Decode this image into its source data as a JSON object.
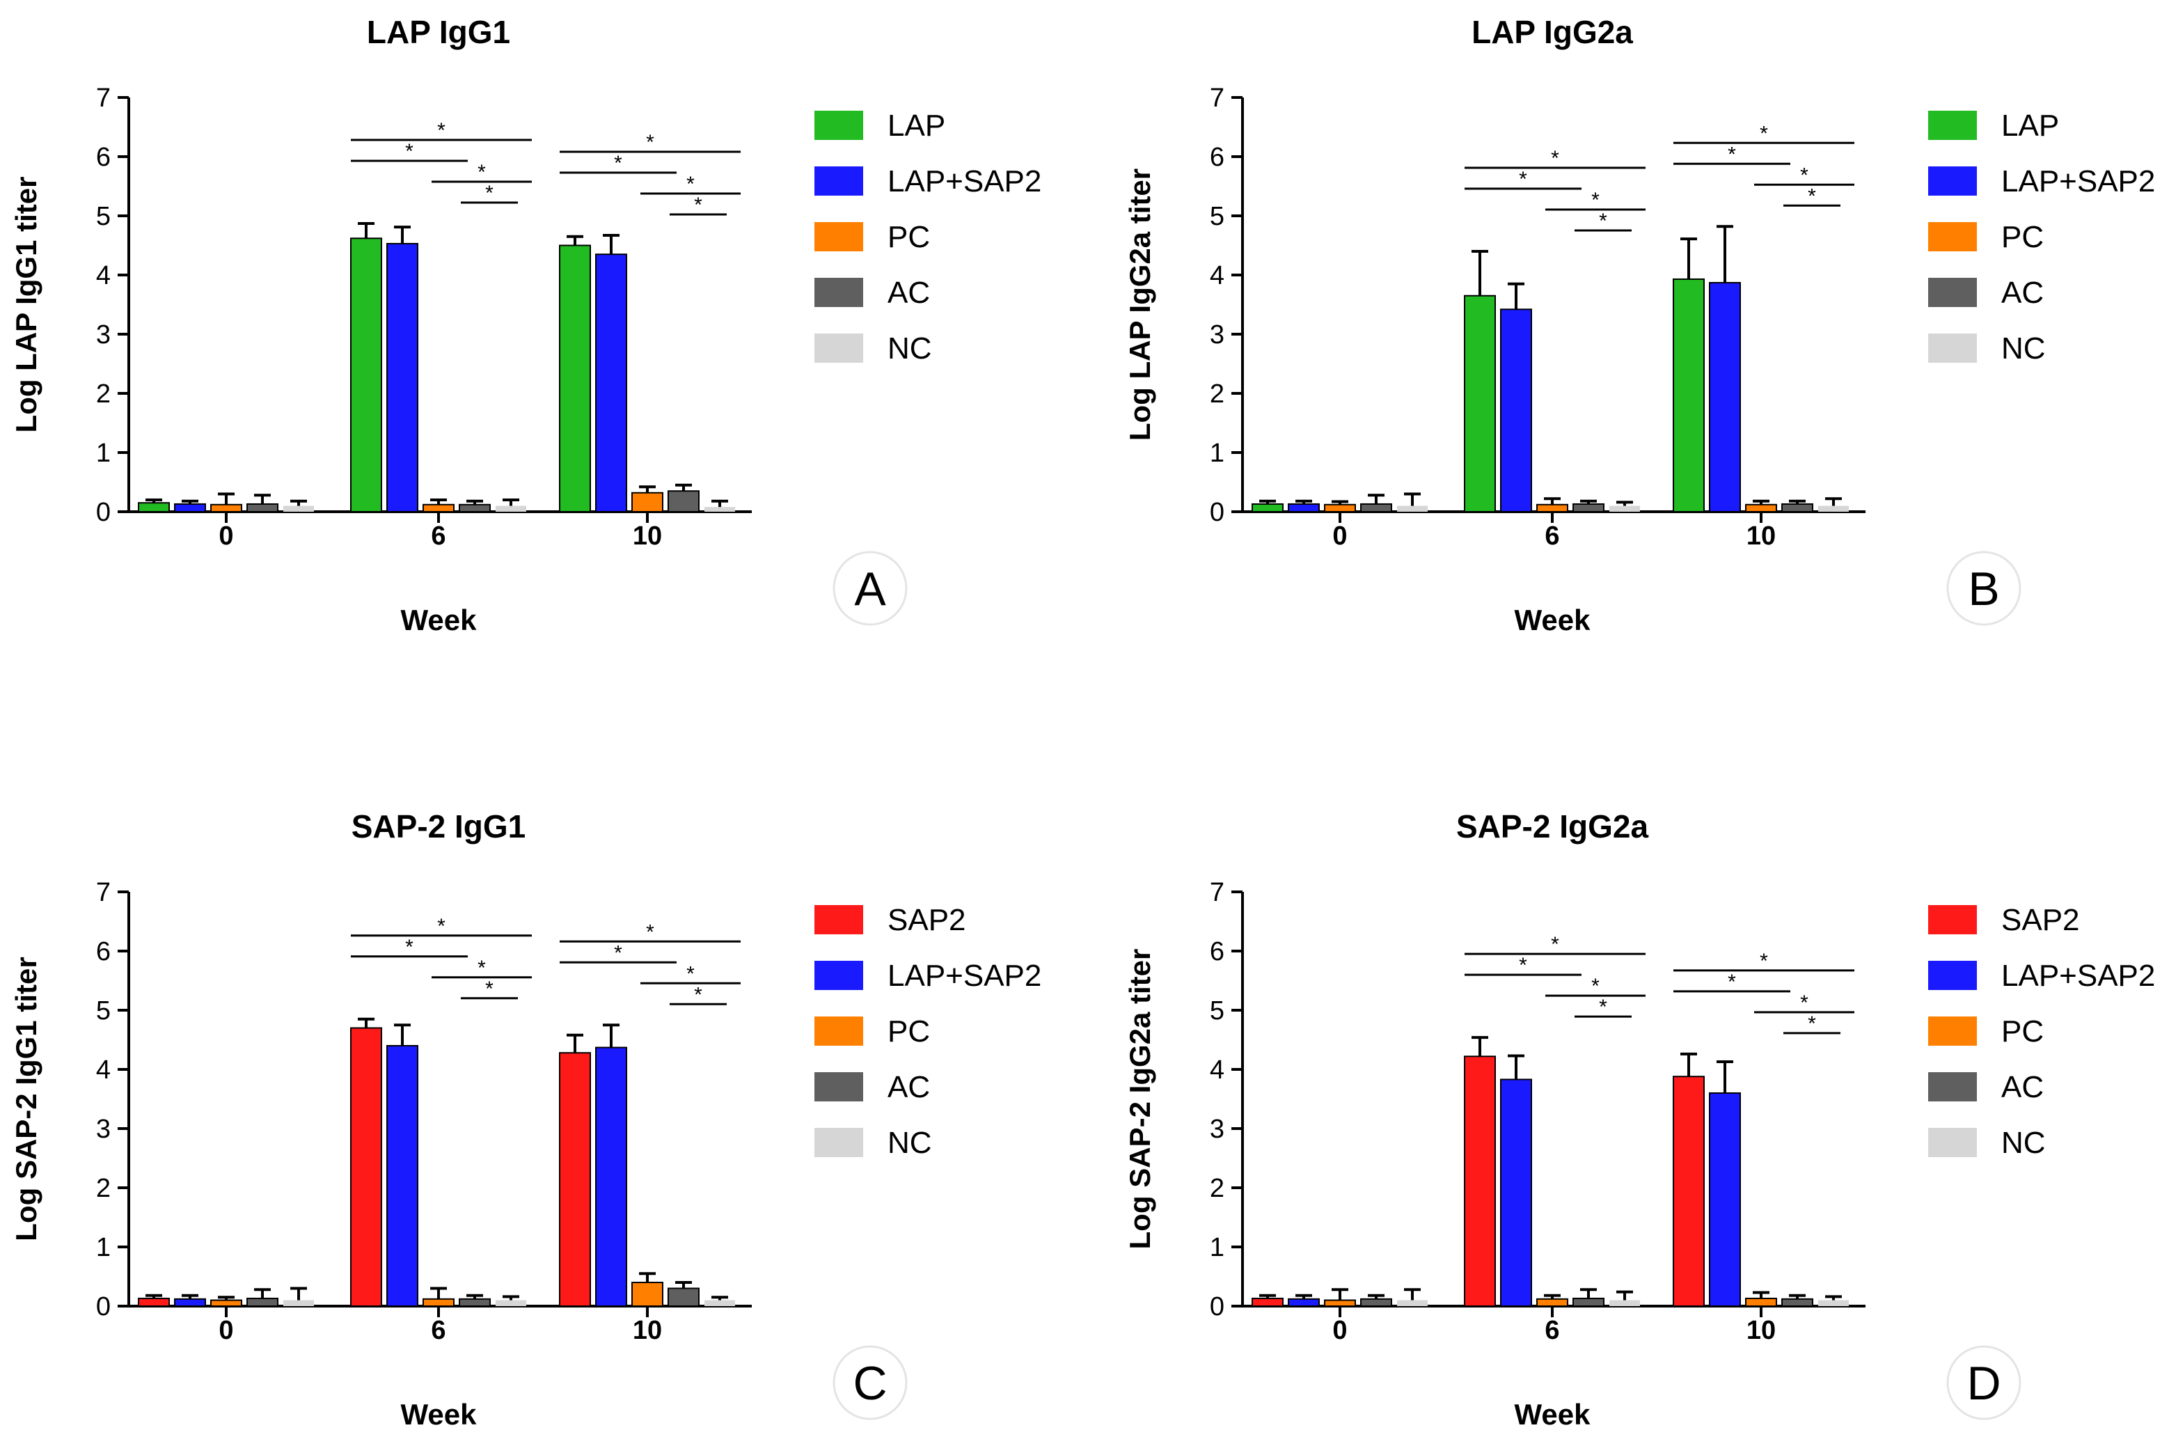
{
  "figure": {
    "panels": [
      {
        "letter": "A",
        "chart_data": {
          "type": "bar",
          "title": "LAP IgG1",
          "xlabel": "Week",
          "ylabel": "Log LAP IgG1 titer",
          "categories": [
            "0",
            "6",
            "10"
          ],
          "ylim": [
            0,
            7
          ],
          "yticks": [
            "0",
            "1",
            "2",
            "3",
            "4",
            "5",
            "6",
            "7"
          ],
          "legend_position": "right",
          "series": [
            {
              "name": "LAP",
              "color": "#22bb22",
              "values": [
                0.15,
                4.62,
                4.5
              ],
              "errors": [
                0.05,
                0.25,
                0.15
              ]
            },
            {
              "name": "LAP+SAP2",
              "color": "#1a1aff",
              "values": [
                0.13,
                4.53,
                4.35
              ],
              "errors": [
                0.05,
                0.28,
                0.32
              ]
            },
            {
              "name": "PC",
              "color": "#ff8000",
              "values": [
                0.12,
                0.12,
                0.32
              ],
              "errors": [
                0.18,
                0.08,
                0.1
              ]
            },
            {
              "name": "AC",
              "color": "#5f5f5f",
              "values": [
                0.13,
                0.12,
                0.35
              ],
              "errors": [
                0.15,
                0.06,
                0.1
              ]
            },
            {
              "name": "NC",
              "color": "#d6d6d6",
              "values": [
                0.1,
                0.1,
                0.08
              ],
              "errors": [
                0.08,
                0.1,
                0.1
              ]
            }
          ],
          "significance": [
            {
              "category": "6",
              "marks": [
                "*",
                "*",
                "*",
                "*"
              ]
            },
            {
              "category": "10",
              "marks": [
                "*",
                "*",
                "*",
                "*"
              ]
            }
          ]
        }
      },
      {
        "letter": "B",
        "chart_data": {
          "type": "bar",
          "title": "LAP IgG2a",
          "xlabel": "Week",
          "ylabel": "Log LAP IgG2a titer",
          "categories": [
            "0",
            "6",
            "10"
          ],
          "ylim": [
            0,
            7
          ],
          "yticks": [
            "0",
            "1",
            "2",
            "3",
            "4",
            "5",
            "6",
            "7"
          ],
          "legend_position": "right",
          "series": [
            {
              "name": "LAP",
              "color": "#22bb22",
              "values": [
                0.13,
                3.65,
                3.93
              ],
              "errors": [
                0.05,
                0.75,
                0.68
              ]
            },
            {
              "name": "LAP+SAP2",
              "color": "#1a1aff",
              "values": [
                0.13,
                3.42,
                3.87
              ],
              "errors": [
                0.05,
                0.43,
                0.95
              ]
            },
            {
              "name": "PC",
              "color": "#ff8000",
              "values": [
                0.12,
                0.12,
                0.12
              ],
              "errors": [
                0.05,
                0.1,
                0.06
              ]
            },
            {
              "name": "AC",
              "color": "#5f5f5f",
              "values": [
                0.13,
                0.13,
                0.13
              ],
              "errors": [
                0.15,
                0.05,
                0.05
              ]
            },
            {
              "name": "NC",
              "color": "#d6d6d6",
              "values": [
                0.1,
                0.1,
                0.1
              ],
              "errors": [
                0.2,
                0.06,
                0.12
              ]
            }
          ],
          "significance": [
            {
              "category": "6",
              "marks": [
                "*",
                "*",
                "*",
                "*"
              ]
            },
            {
              "category": "10",
              "marks": [
                "*",
                "*",
                "*",
                "*"
              ]
            }
          ]
        }
      },
      {
        "letter": "C",
        "chart_data": {
          "type": "bar",
          "title": "SAP-2 IgG1",
          "xlabel": "Week",
          "ylabel": "Log SAP-2 IgG1 titer",
          "categories": [
            "0",
            "6",
            "10"
          ],
          "ylim": [
            0,
            7
          ],
          "yticks": [
            "0",
            "1",
            "2",
            "3",
            "4",
            "5",
            "6",
            "7"
          ],
          "legend_position": "right",
          "series": [
            {
              "name": "SAP2",
              "color": "#ff1a1a",
              "values": [
                0.13,
                4.7,
                4.28
              ],
              "errors": [
                0.05,
                0.15,
                0.3
              ]
            },
            {
              "name": "LAP+SAP2",
              "color": "#1a1aff",
              "values": [
                0.12,
                4.4,
                4.37
              ],
              "errors": [
                0.06,
                0.35,
                0.38
              ]
            },
            {
              "name": "PC",
              "color": "#ff8000",
              "values": [
                0.1,
                0.12,
                0.4
              ],
              "errors": [
                0.05,
                0.18,
                0.15
              ]
            },
            {
              "name": "AC",
              "color": "#5f5f5f",
              "values": [
                0.13,
                0.12,
                0.3
              ],
              "errors": [
                0.15,
                0.06,
                0.1
              ]
            },
            {
              "name": "NC",
              "color": "#d6d6d6",
              "values": [
                0.1,
                0.1,
                0.1
              ],
              "errors": [
                0.2,
                0.06,
                0.05
              ]
            }
          ],
          "significance": [
            {
              "category": "6",
              "marks": [
                "*",
                "*",
                "*",
                "*"
              ]
            },
            {
              "category": "10",
              "marks": [
                "*",
                "*",
                "*",
                "*"
              ]
            }
          ]
        }
      },
      {
        "letter": "D",
        "chart_data": {
          "type": "bar",
          "title": "SAP-2 IgG2a",
          "xlabel": "Week",
          "ylabel": "Log SAP-2 IgG2a titer",
          "categories": [
            "0",
            "6",
            "10"
          ],
          "ylim": [
            0,
            7
          ],
          "yticks": [
            "0",
            "1",
            "2",
            "3",
            "4",
            "5",
            "6",
            "7"
          ],
          "legend_position": "right",
          "series": [
            {
              "name": "SAP2",
              "color": "#ff1a1a",
              "values": [
                0.13,
                4.22,
                3.88
              ],
              "errors": [
                0.05,
                0.32,
                0.38
              ]
            },
            {
              "name": "LAP+SAP2",
              "color": "#1a1aff",
              "values": [
                0.12,
                3.83,
                3.6
              ],
              "errors": [
                0.06,
                0.4,
                0.53
              ]
            },
            {
              "name": "PC",
              "color": "#ff8000",
              "values": [
                0.1,
                0.12,
                0.13
              ],
              "errors": [
                0.18,
                0.06,
                0.1
              ]
            },
            {
              "name": "AC",
              "color": "#5f5f5f",
              "values": [
                0.12,
                0.13,
                0.12
              ],
              "errors": [
                0.06,
                0.15,
                0.06
              ]
            },
            {
              "name": "NC",
              "color": "#d6d6d6",
              "values": [
                0.1,
                0.1,
                0.1
              ],
              "errors": [
                0.18,
                0.14,
                0.06
              ]
            }
          ],
          "significance": [
            {
              "category": "6",
              "marks": [
                "*",
                "*",
                "*",
                "*"
              ]
            },
            {
              "category": "10",
              "marks": [
                "*",
                "*",
                "*",
                "*"
              ]
            }
          ]
        }
      }
    ]
  }
}
